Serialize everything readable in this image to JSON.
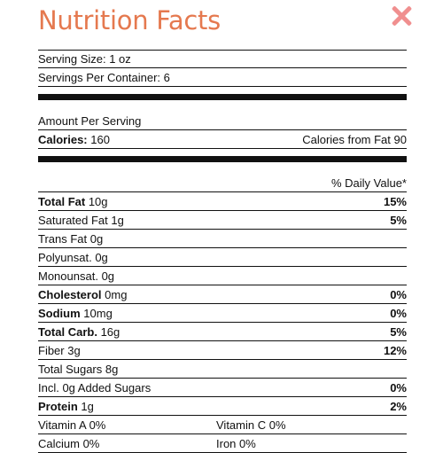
{
  "title": "Nutrition Facts",
  "serving": {
    "size_label": "Serving Size:",
    "size_value": "1 oz",
    "per_container_label": "Servings Per Container:",
    "per_container_value": "6"
  },
  "amount_per_serving": "Amount Per Serving",
  "calories": {
    "label": "Calories:",
    "value": "160",
    "from_fat_label": "Calories from Fat",
    "from_fat_value": "90"
  },
  "daily_value_header": "% Daily Value*",
  "nutrients": [
    {
      "label": "Total Fat",
      "value": "10g",
      "dv": "15%"
    },
    {
      "label": "Saturated Fat",
      "value": "1g",
      "dv": "5%"
    },
    {
      "label": "Trans Fat",
      "value": "0g",
      "dv": ""
    },
    {
      "label": "Polyunsat.",
      "value": "0g",
      "dv": ""
    },
    {
      "label": "Monounsat.",
      "value": "0g",
      "dv": ""
    },
    {
      "label": "Cholesterol",
      "value": "0mg",
      "dv": "0%"
    },
    {
      "label": "Sodium",
      "value": "10mg",
      "dv": "0%"
    },
    {
      "label": "Total Carb.",
      "value": "16g",
      "dv": "5%"
    },
    {
      "label": "Fiber",
      "value": "3g",
      "dv": "12%"
    },
    {
      "label": "Total Sugars",
      "value": "8g",
      "dv": ""
    },
    {
      "label": "Incl. 0g Added Sugars",
      "value": "",
      "dv": "0%"
    },
    {
      "label": "Protein",
      "value": "1g",
      "dv": "2%"
    }
  ],
  "vitamins": [
    {
      "left": "Vitamin A 0%",
      "right": "Vitamin C 0%"
    },
    {
      "left": "Calcium 0%",
      "right": "Iron 0%"
    }
  ],
  "colors": {
    "title": "#e5794f",
    "close_icon": "#f08f8f"
  }
}
